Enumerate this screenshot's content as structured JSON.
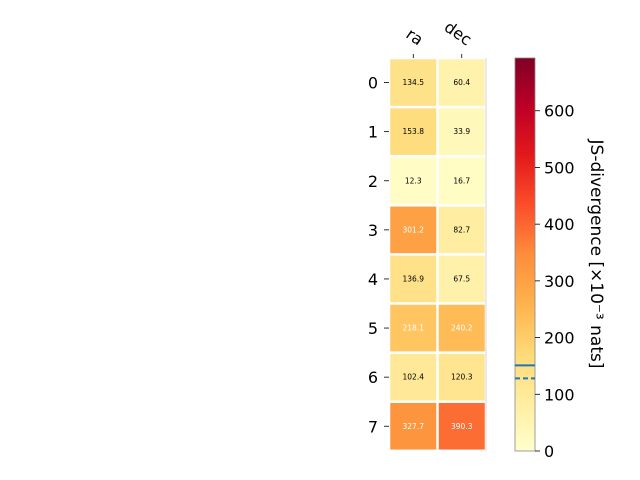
{
  "chart_data": {
    "type": "heatmap",
    "columns": [
      "ra",
      "dec"
    ],
    "rows": [
      "0",
      "1",
      "2",
      "3",
      "4",
      "5",
      "6",
      "7"
    ],
    "values": [
      [
        134.5,
        60.4
      ],
      [
        153.8,
        33.9
      ],
      [
        12.3,
        16.7
      ],
      [
        301.2,
        82.7
      ],
      [
        136.9,
        67.5
      ],
      [
        218.1,
        240.2
      ],
      [
        102.4,
        120.3
      ],
      [
        327.7,
        390.3
      ]
    ],
    "cell_labels": [
      [
        "134.5",
        "60.4"
      ],
      [
        "153.8",
        "33.9"
      ],
      [
        "12.3",
        "16.7"
      ],
      [
        "301.2",
        "82.7"
      ],
      [
        "136.9",
        "67.5"
      ],
      [
        "218.1",
        "240.2"
      ],
      [
        "102.4",
        "120.3"
      ],
      [
        "327.7",
        "390.3"
      ]
    ],
    "colorbar": {
      "label": "JS-divergence [×10⁻³ nats]",
      "range": [
        0,
        693
      ],
      "ticks": [
        0,
        100,
        200,
        300,
        400,
        500,
        600
      ],
      "tick_labels": [
        "0",
        "100",
        "200",
        "300",
        "400",
        "500",
        "600"
      ],
      "colormap": "YlOrRd",
      "reference_lines": [
        {
          "value": 151,
          "style": "solid",
          "color": "#1f77b4"
        },
        {
          "value": 128,
          "style": "dashed",
          "color": "#1f77b4"
        }
      ]
    },
    "grid": false
  }
}
